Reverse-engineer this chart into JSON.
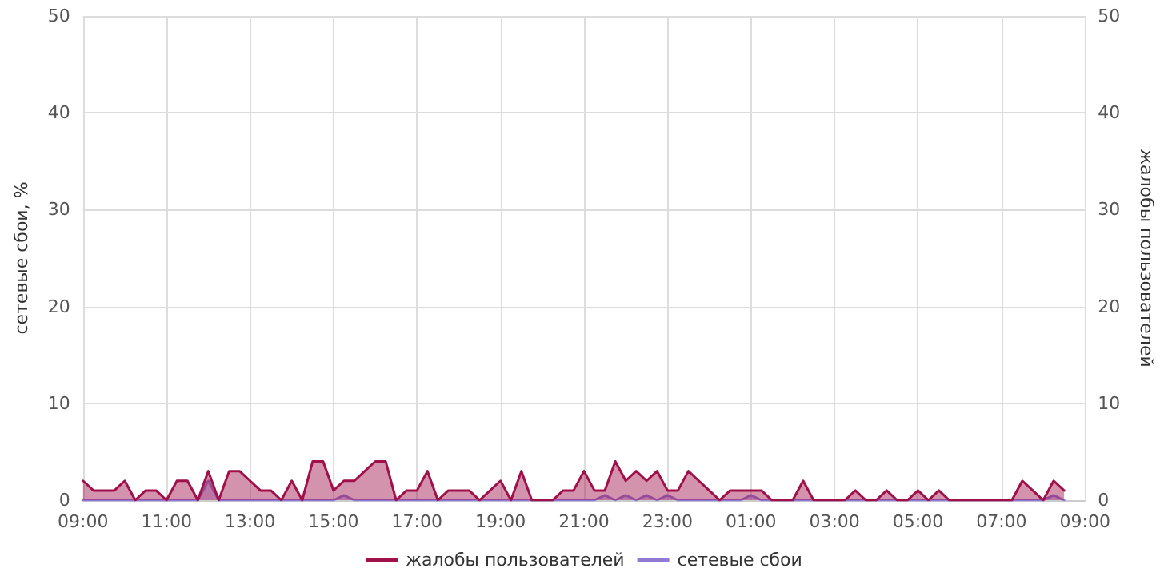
{
  "chart_data": {
    "type": "area",
    "ylabel": "сетевые сбои, %",
    "y2label": "жалобы пользователей",
    "categories": [
      "09:00",
      null,
      null,
      null,
      null,
      null,
      null,
      null,
      "11:00",
      null,
      null,
      null,
      null,
      null,
      null,
      null,
      "13:00",
      null,
      null,
      null,
      null,
      null,
      null,
      null,
      "15:00",
      null,
      null,
      null,
      null,
      null,
      null,
      null,
      "17:00",
      null,
      null,
      null,
      null,
      null,
      null,
      null,
      "19:00",
      null,
      null,
      null,
      null,
      null,
      null,
      null,
      "21:00",
      null,
      null,
      null,
      null,
      null,
      null,
      null,
      "23:00",
      null,
      null,
      null,
      null,
      null,
      null,
      null,
      "01:00",
      null,
      null,
      null,
      null,
      null,
      null,
      null,
      "03:00",
      null,
      null,
      null,
      null,
      null,
      null,
      null,
      "05:00",
      null,
      null,
      null,
      null,
      null,
      null,
      null,
      "07:00",
      null,
      null,
      null,
      null,
      null,
      null,
      null,
      "09:00"
    ],
    "ylim": [
      0,
      50
    ],
    "yticks": [
      0,
      10,
      20,
      30,
      40,
      50
    ],
    "y2lim": [
      0,
      50
    ],
    "y2ticks": [
      0,
      10,
      20,
      30,
      40,
      50
    ],
    "grid": true,
    "legend": "bottom",
    "marker": "none",
    "line_style": "solid",
    "series": [
      {
        "name": "жалобы пользователей",
        "color": "#a0104a",
        "axis": "y2",
        "values": [
          2,
          1,
          1,
          1,
          2,
          0,
          1,
          1,
          0,
          2,
          2,
          0,
          3,
          0,
          3,
          3,
          2,
          1,
          1,
          0,
          2,
          0,
          4,
          4,
          1,
          2,
          2,
          3,
          4,
          4,
          0,
          1,
          1,
          3,
          0,
          1,
          1,
          1,
          0,
          1,
          2,
          0,
          3,
          0,
          0,
          0,
          1,
          1,
          3,
          1,
          1,
          4,
          2,
          3,
          2,
          3,
          1,
          1,
          3,
          2,
          1,
          0,
          1,
          1,
          1,
          1,
          0,
          0,
          0,
          2,
          0,
          0,
          0,
          0,
          1,
          0,
          0,
          1,
          0,
          0,
          1,
          0,
          1,
          0,
          0,
          0,
          0,
          0,
          0,
          0,
          2,
          1,
          0,
          2,
          1,
          null,
          null
        ]
      },
      {
        "name": "сетевые сбои",
        "color": "#8f7ad8",
        "axis": "y",
        "values": [
          0,
          0,
          0,
          0,
          0,
          0,
          0,
          0,
          0,
          0,
          0,
          0,
          2,
          0,
          0,
          0,
          0,
          0,
          0,
          0,
          0,
          0,
          0,
          0,
          0,
          0.5,
          0,
          0,
          0,
          0,
          0,
          0,
          0,
          0,
          0,
          0,
          0,
          0,
          0,
          0,
          0,
          0,
          0,
          0,
          0,
          0,
          0,
          0,
          0,
          0,
          0.5,
          0,
          0.5,
          0,
          0.5,
          0,
          0.5,
          0,
          0,
          0,
          0,
          0,
          0,
          0,
          0.5,
          0,
          0,
          0,
          0,
          0,
          0,
          0,
          0,
          0,
          0,
          0,
          0,
          0,
          0,
          0,
          0,
          0,
          0,
          0,
          0,
          0,
          0,
          0,
          0,
          0,
          0,
          0,
          0,
          0.5,
          0,
          null,
          null
        ]
      }
    ]
  }
}
